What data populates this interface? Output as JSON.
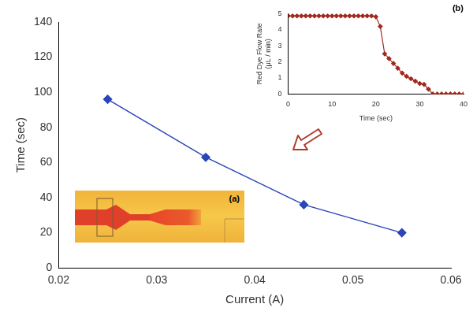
{
  "chart_data": [
    {
      "type": "line",
      "x_label": "Current (A)",
      "y_label": "Time (sec)",
      "x": [
        0.025,
        0.035,
        0.045,
        0.055
      ],
      "values": [
        96,
        63,
        36,
        20
      ],
      "color": "#2a45b8",
      "marker": "diamond",
      "xlim": [
        0.02,
        0.06
      ],
      "xticks": [
        0.02,
        0.03,
        0.04,
        0.05,
        0.06
      ],
      "ylim": [
        0,
        140
      ],
      "yticks": [
        0,
        20,
        40,
        60,
        80,
        100,
        120,
        140
      ],
      "grid": false
    },
    {
      "type": "line",
      "title": "(b)",
      "y_label": [
        "Red Dye Flow Rate",
        "(μL / min)"
      ],
      "x_label": "Time (sec)",
      "x": [
        0,
        1,
        2,
        3,
        4,
        5,
        6,
        7,
        8,
        9,
        10,
        11,
        12,
        13,
        14,
        15,
        16,
        17,
        18,
        19,
        20,
        21,
        22,
        23,
        24,
        25,
        26,
        27,
        28,
        29,
        30,
        31,
        32,
        33,
        34,
        35,
        36,
        37,
        38,
        39,
        40
      ],
      "values": [
        4.85,
        4.85,
        4.85,
        4.85,
        4.85,
        4.85,
        4.85,
        4.85,
        4.85,
        4.85,
        4.85,
        4.85,
        4.85,
        4.85,
        4.85,
        4.85,
        4.85,
        4.85,
        4.85,
        4.85,
        4.8,
        4.2,
        2.5,
        2.2,
        1.9,
        1.6,
        1.3,
        1.1,
        0.95,
        0.8,
        0.65,
        0.6,
        0.3,
        0,
        0,
        0,
        0,
        0,
        0,
        0,
        0
      ],
      "color": "#a0281e",
      "marker": "diamond",
      "xlim": [
        0,
        40
      ],
      "xticks": [
        0,
        10,
        20,
        30,
        40
      ],
      "ylim": [
        0,
        5
      ],
      "yticks": [
        0,
        1,
        2,
        3,
        4,
        5
      ],
      "grid": false
    }
  ],
  "photo": {
    "label": "(a)"
  }
}
